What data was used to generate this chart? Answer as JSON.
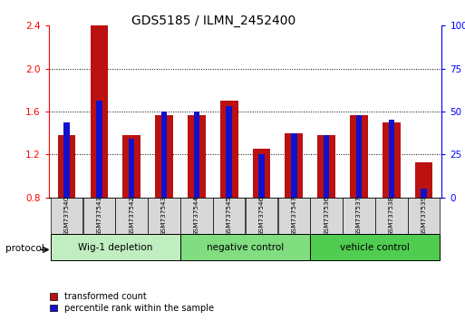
{
  "title": "GDS5185 / ILMN_2452400",
  "samples": [
    "GSM737540",
    "GSM737541",
    "GSM737542",
    "GSM737543",
    "GSM737544",
    "GSM737545",
    "GSM737546",
    "GSM737547",
    "GSM737536",
    "GSM737537",
    "GSM737538",
    "GSM737539"
  ],
  "red_values": [
    1.38,
    2.4,
    1.38,
    1.57,
    1.57,
    1.7,
    1.25,
    1.4,
    1.38,
    1.57,
    1.5,
    1.13
  ],
  "blue_values": [
    1.5,
    1.7,
    1.35,
    1.6,
    1.6,
    1.65,
    1.2,
    1.4,
    1.38,
    1.57,
    1.52,
    0.88
  ],
  "ylim_left": [
    0.8,
    2.4
  ],
  "ylim_right": [
    0,
    100
  ],
  "yticks_left": [
    0.8,
    1.2,
    1.6,
    2.0,
    2.4
  ],
  "yticks_right": [
    0,
    25,
    50,
    75,
    100
  ],
  "groups": [
    {
      "label": "Wig-1 depletion",
      "indices": [
        0,
        1,
        2,
        3
      ],
      "color": "#c0eec0"
    },
    {
      "label": "negative control",
      "indices": [
        4,
        5,
        6,
        7
      ],
      "color": "#80dd80"
    },
    {
      "label": "vehicle control",
      "indices": [
        8,
        9,
        10,
        11
      ],
      "color": "#50cc50"
    }
  ],
  "bar_color_red": "#bb1111",
  "bar_color_blue": "#1111cc",
  "bar_width": 0.55,
  "blue_bar_width": 0.18,
  "baseline": 0.8,
  "label_red": "transformed count",
  "label_blue": "percentile rank within the sample",
  "protocol_label": "protocol"
}
